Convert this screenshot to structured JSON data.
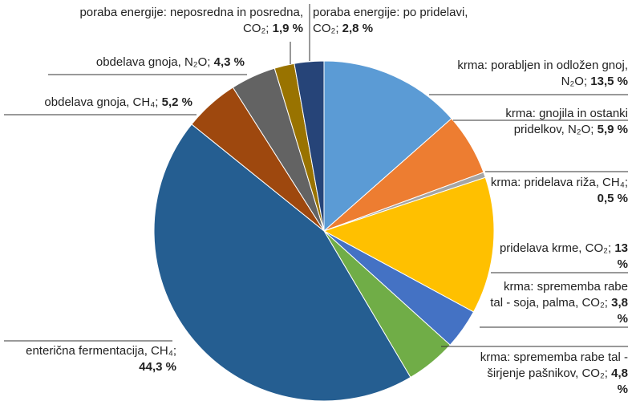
{
  "chart_data": {
    "type": "pie",
    "categories": [
      "krma: porabljen in odložen gnoj, N₂O;",
      "krma: gnojila in ostanki pridelkov, N₂O;",
      "krma: pridelava riža, CH₄;",
      "pridelava krme, CO₂;",
      "krma: sprememba rabe tal - soja, palma, CO₂;",
      "krma: sprememba rabe tal - širjenje pašnikov, CO₂;",
      "enterična fermentacija, CH₄;",
      "obdelava gnoja, CH₄;",
      "obdelava gnoja, N₂O;",
      "poraba energije: neposredna in posredna, CO₂;",
      "poraba energije: po pridelavi, CO₂;"
    ],
    "values": [
      13.5,
      5.9,
      0.5,
      13,
      3.8,
      4.8,
      44.3,
      5.2,
      4.3,
      1.9,
      2.8
    ],
    "value_labels": [
      "13,5 %",
      "5,9 %",
      "0,5 %",
      "13 %",
      "3,8 %",
      "4,8 %",
      "44,3 %",
      "5,2 %",
      "4,3 %",
      "1,9 %",
      "2,8 %"
    ],
    "colors": [
      "#5b9bd5",
      "#ed7d31",
      "#a5a5a5",
      "#ffc000",
      "#4472c4",
      "#70ad47",
      "#255e91",
      "#9e480e",
      "#636363",
      "#997300",
      "#264478"
    ]
  }
}
